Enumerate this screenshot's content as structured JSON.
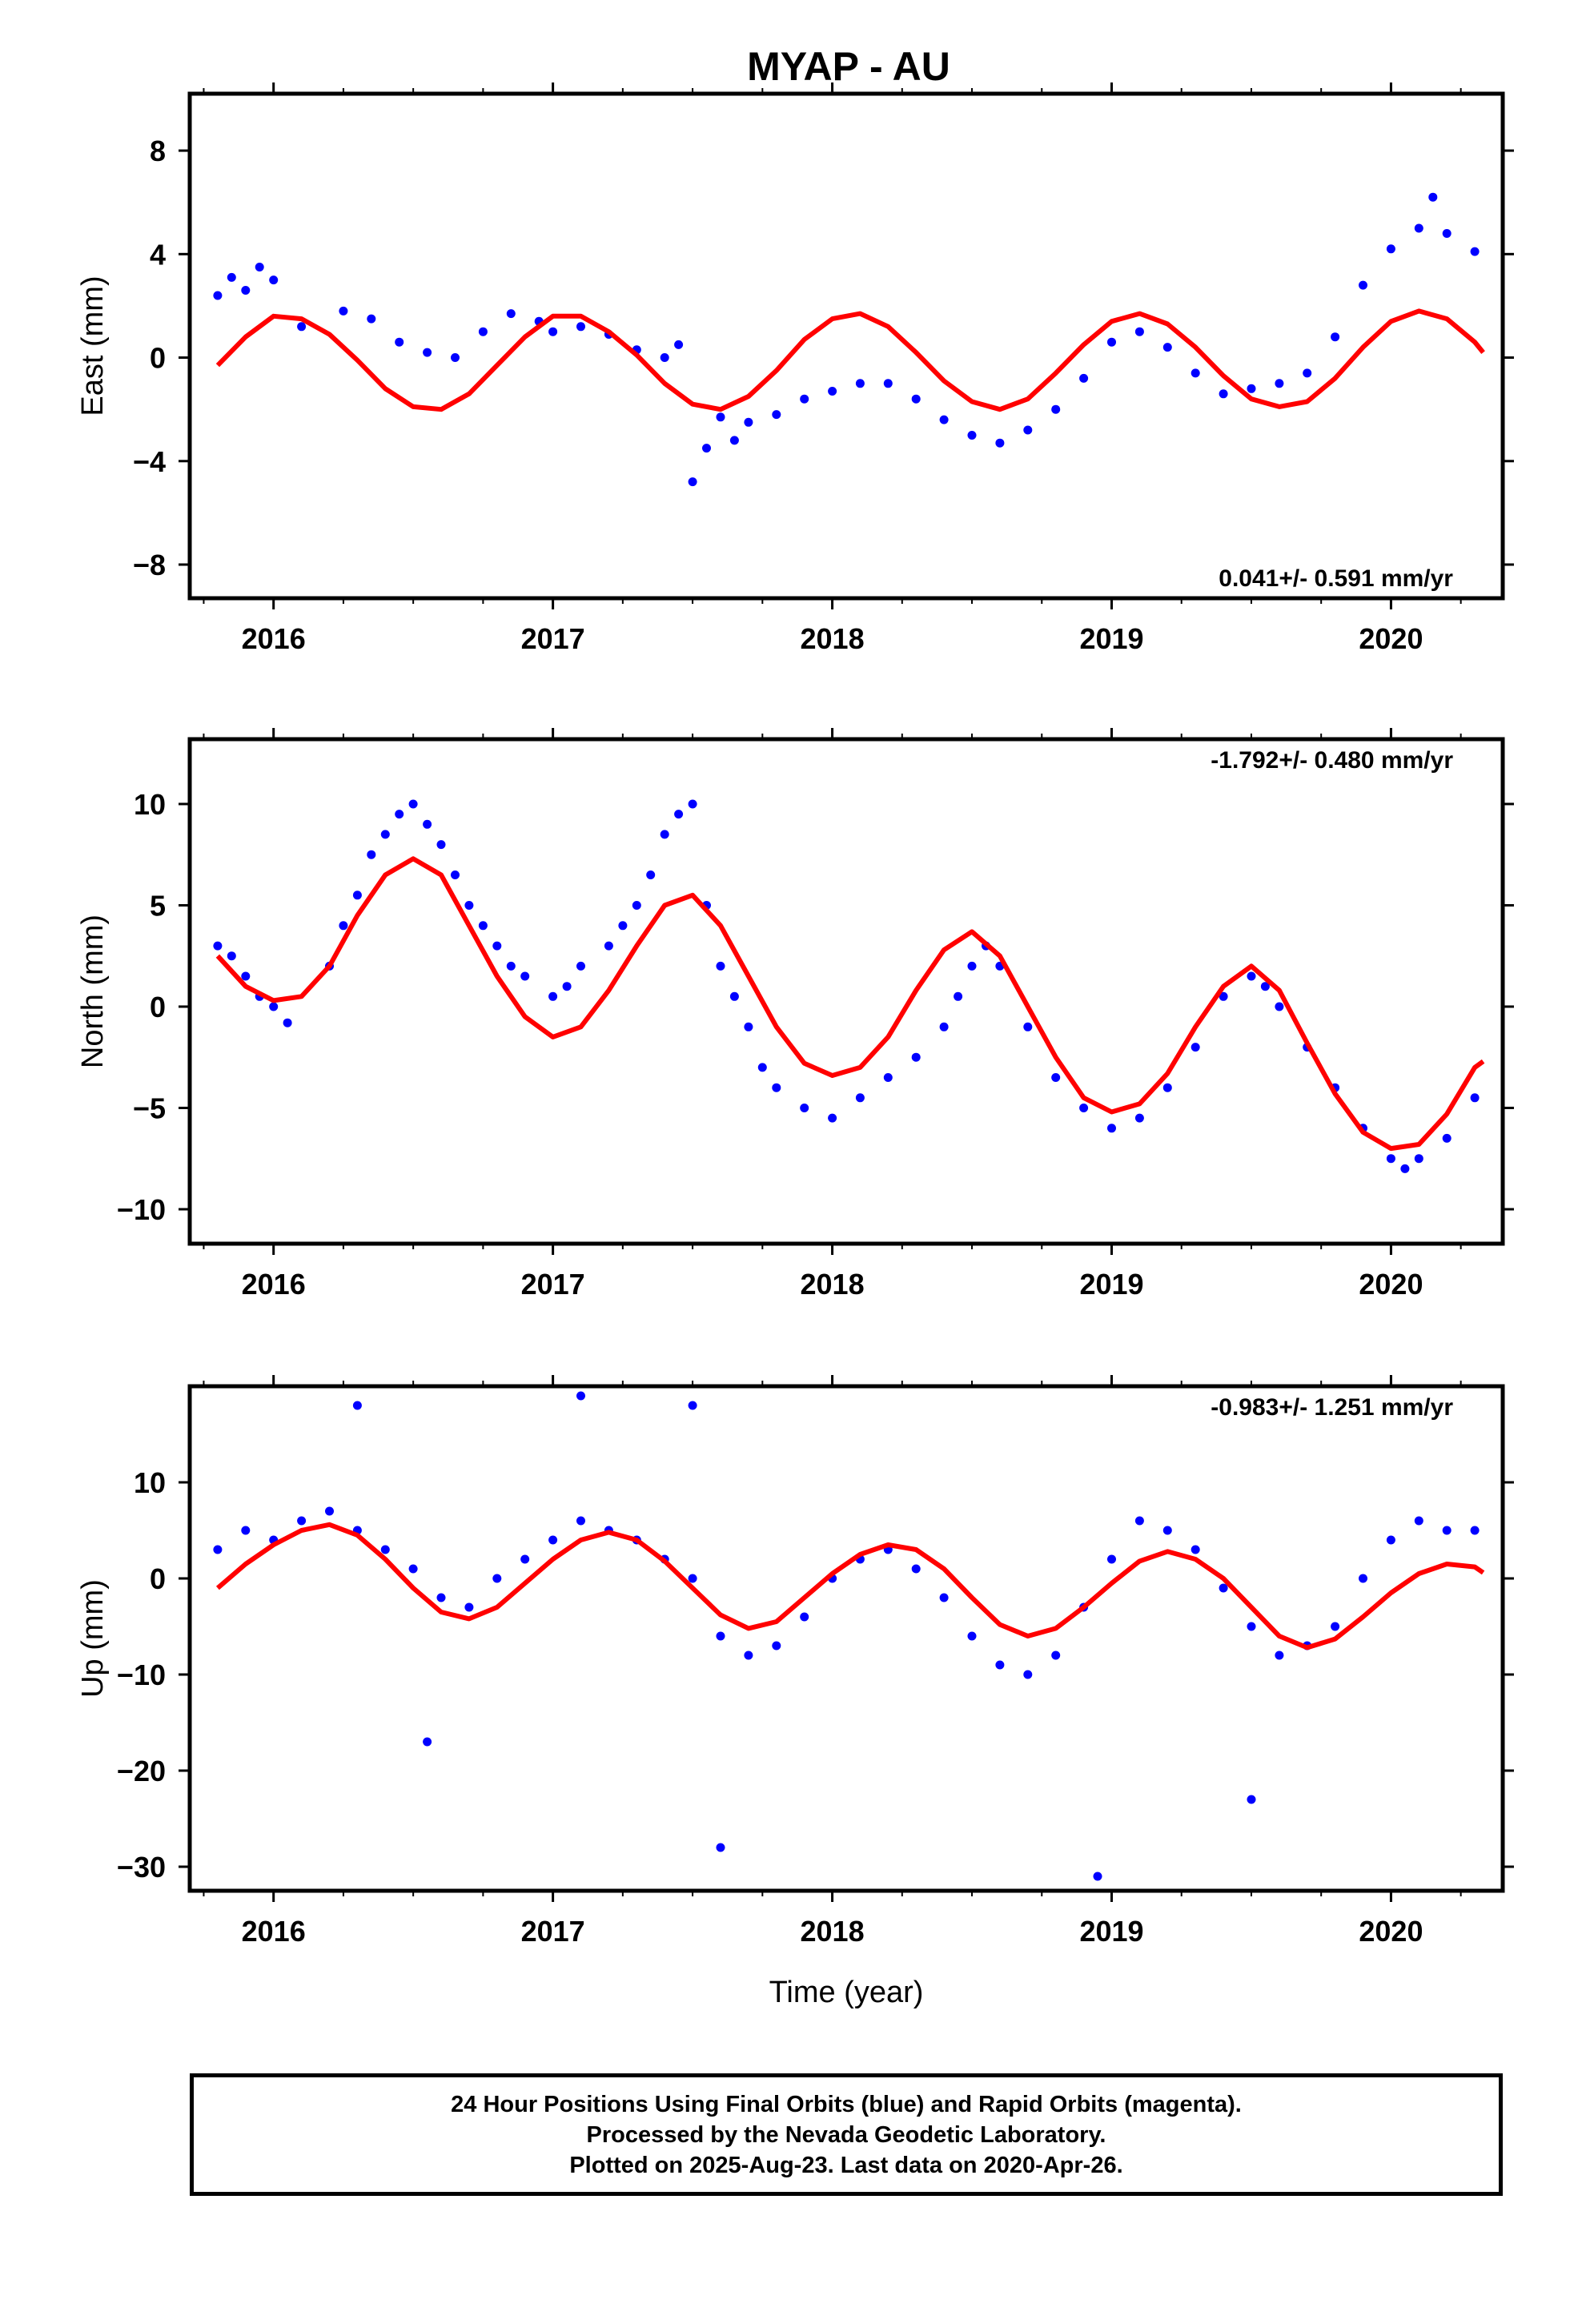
{
  "title": "MYAP - AU",
  "xlabel": "Time (year)",
  "colors": {
    "final_orbits": "#0000ff",
    "model_fit": "#ff0000",
    "frame": "#000000"
  },
  "caption": {
    "line1": "24 Hour Positions Using Final Orbits (blue) and Rapid Orbits (magenta).",
    "line2": "Processed by the Nevada Geodetic Laboratory.",
    "line3": "Plotted on 2025-Aug-23. Last data on 2020-Apr-26."
  },
  "chart_data": [
    {
      "type": "scatter",
      "ylabel": "East (mm)",
      "rate_label": "0.041+/- 0.591 mm/yr",
      "xlim": [
        2015.7,
        2020.4
      ],
      "ylim": [
        -9.3,
        10.2
      ],
      "xticks": [
        2016,
        2017,
        2018,
        2019,
        2020
      ],
      "yticks": [
        -8,
        -4,
        0,
        4,
        8
      ],
      "points": [
        [
          2015.8,
          2.4
        ],
        [
          2015.85,
          3.1
        ],
        [
          2015.9,
          2.6
        ],
        [
          2015.95,
          3.5
        ],
        [
          2016.0,
          3.0
        ],
        [
          2016.1,
          1.2
        ],
        [
          2016.25,
          1.8
        ],
        [
          2016.35,
          1.5
        ],
        [
          2016.45,
          0.6
        ],
        [
          2016.55,
          0.2
        ],
        [
          2016.65,
          0.0
        ],
        [
          2016.75,
          1.0
        ],
        [
          2016.85,
          1.7
        ],
        [
          2016.95,
          1.4
        ],
        [
          2017.0,
          1.0
        ],
        [
          2017.1,
          1.2
        ],
        [
          2017.2,
          0.9
        ],
        [
          2017.3,
          0.3
        ],
        [
          2017.4,
          0.0
        ],
        [
          2017.45,
          0.5
        ],
        [
          2017.5,
          -4.8
        ],
        [
          2017.55,
          -3.5
        ],
        [
          2017.6,
          -2.3
        ],
        [
          2017.65,
          -3.2
        ],
        [
          2017.7,
          -2.5
        ],
        [
          2017.8,
          -2.2
        ],
        [
          2017.9,
          -1.6
        ],
        [
          2018.0,
          -1.3
        ],
        [
          2018.1,
          -1.0
        ],
        [
          2018.2,
          -1.0
        ],
        [
          2018.3,
          -1.6
        ],
        [
          2018.4,
          -2.4
        ],
        [
          2018.5,
          -3.0
        ],
        [
          2018.6,
          -3.3
        ],
        [
          2018.7,
          -2.8
        ],
        [
          2018.8,
          -2.0
        ],
        [
          2018.9,
          -0.8
        ],
        [
          2019.0,
          0.6
        ],
        [
          2019.1,
          1.0
        ],
        [
          2019.2,
          0.4
        ],
        [
          2019.3,
          -0.6
        ],
        [
          2019.4,
          -1.4
        ],
        [
          2019.5,
          -1.2
        ],
        [
          2019.6,
          -1.0
        ],
        [
          2019.7,
          -0.6
        ],
        [
          2019.8,
          0.8
        ],
        [
          2019.9,
          2.8
        ],
        [
          2020.0,
          4.2
        ],
        [
          2020.1,
          5.0
        ],
        [
          2020.15,
          6.2
        ],
        [
          2020.2,
          4.8
        ],
        [
          2020.3,
          4.1
        ]
      ],
      "fit": [
        [
          2015.8,
          -0.3
        ],
        [
          2015.9,
          0.8
        ],
        [
          2016.0,
          1.6
        ],
        [
          2016.1,
          1.5
        ],
        [
          2016.2,
          0.9
        ],
        [
          2016.3,
          -0.1
        ],
        [
          2016.4,
          -1.2
        ],
        [
          2016.5,
          -1.9
        ],
        [
          2016.6,
          -2.0
        ],
        [
          2016.7,
          -1.4
        ],
        [
          2016.8,
          -0.3
        ],
        [
          2016.9,
          0.8
        ],
        [
          2017.0,
          1.6
        ],
        [
          2017.1,
          1.6
        ],
        [
          2017.2,
          1.0
        ],
        [
          2017.3,
          0.1
        ],
        [
          2017.4,
          -1.0
        ],
        [
          2017.5,
          -1.8
        ],
        [
          2017.6,
          -2.0
        ],
        [
          2017.7,
          -1.5
        ],
        [
          2017.8,
          -0.5
        ],
        [
          2017.9,
          0.7
        ],
        [
          2018.0,
          1.5
        ],
        [
          2018.1,
          1.7
        ],
        [
          2018.2,
          1.2
        ],
        [
          2018.3,
          0.2
        ],
        [
          2018.4,
          -0.9
        ],
        [
          2018.5,
          -1.7
        ],
        [
          2018.6,
          -2.0
        ],
        [
          2018.7,
          -1.6
        ],
        [
          2018.8,
          -0.6
        ],
        [
          2018.9,
          0.5
        ],
        [
          2019.0,
          1.4
        ],
        [
          2019.1,
          1.7
        ],
        [
          2019.2,
          1.3
        ],
        [
          2019.3,
          0.4
        ],
        [
          2019.4,
          -0.7
        ],
        [
          2019.5,
          -1.6
        ],
        [
          2019.6,
          -1.9
        ],
        [
          2019.7,
          -1.7
        ],
        [
          2019.8,
          -0.8
        ],
        [
          2019.9,
          0.4
        ],
        [
          2020.0,
          1.4
        ],
        [
          2020.1,
          1.8
        ],
        [
          2020.2,
          1.5
        ],
        [
          2020.3,
          0.6
        ],
        [
          2020.33,
          0.2
        ]
      ]
    },
    {
      "type": "scatter",
      "ylabel": "North (mm)",
      "rate_label": "-1.792+/- 0.480 mm/yr",
      "xlim": [
        2015.7,
        2020.4
      ],
      "ylim": [
        -11.7,
        13.2
      ],
      "xticks": [
        2016,
        2017,
        2018,
        2019,
        2020
      ],
      "yticks": [
        -10,
        -5,
        0,
        5,
        10
      ],
      "points": [
        [
          2015.8,
          3.0
        ],
        [
          2015.85,
          2.5
        ],
        [
          2015.9,
          1.5
        ],
        [
          2015.95,
          0.5
        ],
        [
          2016.0,
          0.0
        ],
        [
          2016.05,
          -0.8
        ],
        [
          2016.2,
          2.0
        ],
        [
          2016.25,
          4.0
        ],
        [
          2016.3,
          5.5
        ],
        [
          2016.35,
          7.5
        ],
        [
          2016.4,
          8.5
        ],
        [
          2016.45,
          9.5
        ],
        [
          2016.5,
          10.0
        ],
        [
          2016.55,
          9.0
        ],
        [
          2016.6,
          8.0
        ],
        [
          2016.65,
          6.5
        ],
        [
          2016.7,
          5.0
        ],
        [
          2016.75,
          4.0
        ],
        [
          2016.8,
          3.0
        ],
        [
          2016.85,
          2.0
        ],
        [
          2016.9,
          1.5
        ],
        [
          2017.0,
          0.5
        ],
        [
          2017.05,
          1.0
        ],
        [
          2017.1,
          2.0
        ],
        [
          2017.2,
          3.0
        ],
        [
          2017.25,
          4.0
        ],
        [
          2017.3,
          5.0
        ],
        [
          2017.35,
          6.5
        ],
        [
          2017.4,
          8.5
        ],
        [
          2017.45,
          9.5
        ],
        [
          2017.5,
          10.0
        ],
        [
          2017.55,
          5.0
        ],
        [
          2017.6,
          2.0
        ],
        [
          2017.65,
          0.5
        ],
        [
          2017.7,
          -1.0
        ],
        [
          2017.75,
          -3.0
        ],
        [
          2017.8,
          -4.0
        ],
        [
          2017.9,
          -5.0
        ],
        [
          2018.0,
          -5.5
        ],
        [
          2018.1,
          -4.5
        ],
        [
          2018.2,
          -3.5
        ],
        [
          2018.3,
          -2.5
        ],
        [
          2018.4,
          -1.0
        ],
        [
          2018.45,
          0.5
        ],
        [
          2018.5,
          2.0
        ],
        [
          2018.55,
          3.0
        ],
        [
          2018.6,
          2.0
        ],
        [
          2018.7,
          -1.0
        ],
        [
          2018.8,
          -3.5
        ],
        [
          2018.9,
          -5.0
        ],
        [
          2019.0,
          -6.0
        ],
        [
          2019.1,
          -5.5
        ],
        [
          2019.2,
          -4.0
        ],
        [
          2019.3,
          -2.0
        ],
        [
          2019.4,
          0.5
        ],
        [
          2019.5,
          1.5
        ],
        [
          2019.55,
          1.0
        ],
        [
          2019.6,
          0.0
        ],
        [
          2019.7,
          -2.0
        ],
        [
          2019.8,
          -4.0
        ],
        [
          2019.9,
          -6.0
        ],
        [
          2020.0,
          -7.5
        ],
        [
          2020.05,
          -8.0
        ],
        [
          2020.1,
          -7.5
        ],
        [
          2020.2,
          -6.5
        ],
        [
          2020.3,
          -4.5
        ]
      ],
      "fit": [
        [
          2015.8,
          2.5
        ],
        [
          2015.9,
          1.0
        ],
        [
          2016.0,
          0.3
        ],
        [
          2016.1,
          0.5
        ],
        [
          2016.2,
          2.0
        ],
        [
          2016.3,
          4.5
        ],
        [
          2016.4,
          6.5
        ],
        [
          2016.5,
          7.3
        ],
        [
          2016.6,
          6.5
        ],
        [
          2016.7,
          4.0
        ],
        [
          2016.8,
          1.5
        ],
        [
          2016.9,
          -0.5
        ],
        [
          2017.0,
          -1.5
        ],
        [
          2017.1,
          -1.0
        ],
        [
          2017.2,
          0.8
        ],
        [
          2017.3,
          3.0
        ],
        [
          2017.4,
          5.0
        ],
        [
          2017.5,
          5.5
        ],
        [
          2017.6,
          4.0
        ],
        [
          2017.7,
          1.5
        ],
        [
          2017.8,
          -1.0
        ],
        [
          2017.9,
          -2.8
        ],
        [
          2018.0,
          -3.4
        ],
        [
          2018.1,
          -3.0
        ],
        [
          2018.2,
          -1.5
        ],
        [
          2018.3,
          0.8
        ],
        [
          2018.4,
          2.8
        ],
        [
          2018.5,
          3.7
        ],
        [
          2018.6,
          2.5
        ],
        [
          2018.7,
          0.0
        ],
        [
          2018.8,
          -2.5
        ],
        [
          2018.9,
          -4.5
        ],
        [
          2019.0,
          -5.2
        ],
        [
          2019.1,
          -4.8
        ],
        [
          2019.2,
          -3.3
        ],
        [
          2019.3,
          -1.0
        ],
        [
          2019.4,
          1.0
        ],
        [
          2019.5,
          2.0
        ],
        [
          2019.6,
          0.8
        ],
        [
          2019.7,
          -1.8
        ],
        [
          2019.8,
          -4.3
        ],
        [
          2019.9,
          -6.2
        ],
        [
          2020.0,
          -7.0
        ],
        [
          2020.1,
          -6.8
        ],
        [
          2020.2,
          -5.3
        ],
        [
          2020.3,
          -3.0
        ],
        [
          2020.33,
          -2.7
        ]
      ]
    },
    {
      "type": "scatter",
      "ylabel": "Up (mm)",
      "rate_label": "-0.983+/- 1.251 mm/yr",
      "xlim": [
        2015.7,
        2020.4
      ],
      "ylim": [
        -32.5,
        20.0
      ],
      "xticks": [
        2016,
        2017,
        2018,
        2019,
        2020
      ],
      "yticks": [
        -30,
        -20,
        -10,
        0,
        10
      ],
      "points": [
        [
          2015.8,
          3.0
        ],
        [
          2015.9,
          5.0
        ],
        [
          2016.0,
          4.0
        ],
        [
          2016.1,
          6.0
        ],
        [
          2016.2,
          7.0
        ],
        [
          2016.3,
          5.0
        ],
        [
          2016.4,
          3.0
        ],
        [
          2016.5,
          1.0
        ],
        [
          2016.6,
          -2.0
        ],
        [
          2016.7,
          -3.0
        ],
        [
          2016.8,
          0.0
        ],
        [
          2016.9,
          2.0
        ],
        [
          2017.0,
          4.0
        ],
        [
          2017.1,
          6.0
        ],
        [
          2017.2,
          5.0
        ],
        [
          2017.3,
          4.0
        ],
        [
          2017.4,
          2.0
        ],
        [
          2017.5,
          0.0
        ],
        [
          2017.6,
          -6.0
        ],
        [
          2017.7,
          -8.0
        ],
        [
          2017.8,
          -7.0
        ],
        [
          2017.9,
          -4.0
        ],
        [
          2018.0,
          0.0
        ],
        [
          2018.1,
          2.0
        ],
        [
          2018.2,
          3.0
        ],
        [
          2018.3,
          1.0
        ],
        [
          2018.4,
          -2.0
        ],
        [
          2018.5,
          -6.0
        ],
        [
          2018.6,
          -9.0
        ],
        [
          2018.7,
          -10.0
        ],
        [
          2018.8,
          -8.0
        ],
        [
          2018.9,
          -3.0
        ],
        [
          2019.0,
          2.0
        ],
        [
          2019.1,
          6.0
        ],
        [
          2019.2,
          5.0
        ],
        [
          2019.3,
          3.0
        ],
        [
          2019.4,
          -1.0
        ],
        [
          2019.5,
          -5.0
        ],
        [
          2019.6,
          -8.0
        ],
        [
          2019.7,
          -7.0
        ],
        [
          2019.8,
          -5.0
        ],
        [
          2019.9,
          0.0
        ],
        [
          2020.0,
          4.0
        ],
        [
          2020.1,
          6.0
        ],
        [
          2020.2,
          5.0
        ],
        [
          2020.3,
          5.0
        ],
        [
          2017.5,
          18.0
        ],
        [
          2017.6,
          -28.0
        ],
        [
          2018.95,
          -31.0
        ],
        [
          2016.55,
          -17.0
        ],
        [
          2019.5,
          -23.0
        ],
        [
          2016.3,
          18.0
        ],
        [
          2017.1,
          19.0
        ]
      ],
      "fit": [
        [
          2015.8,
          -1.0
        ],
        [
          2015.9,
          1.5
        ],
        [
          2016.0,
          3.5
        ],
        [
          2016.1,
          5.0
        ],
        [
          2016.2,
          5.6
        ],
        [
          2016.3,
          4.5
        ],
        [
          2016.4,
          2.0
        ],
        [
          2016.5,
          -1.0
        ],
        [
          2016.6,
          -3.5
        ],
        [
          2016.7,
          -4.2
        ],
        [
          2016.8,
          -3.0
        ],
        [
          2016.9,
          -0.5
        ],
        [
          2017.0,
          2.0
        ],
        [
          2017.1,
          4.0
        ],
        [
          2017.2,
          4.8
        ],
        [
          2017.3,
          4.0
        ],
        [
          2017.4,
          1.8
        ],
        [
          2017.5,
          -1.0
        ],
        [
          2017.6,
          -3.8
        ],
        [
          2017.7,
          -5.2
        ],
        [
          2017.8,
          -4.5
        ],
        [
          2017.9,
          -2.0
        ],
        [
          2018.0,
          0.5
        ],
        [
          2018.1,
          2.5
        ],
        [
          2018.2,
          3.5
        ],
        [
          2018.3,
          3.0
        ],
        [
          2018.4,
          1.0
        ],
        [
          2018.5,
          -2.0
        ],
        [
          2018.6,
          -4.8
        ],
        [
          2018.7,
          -6.0
        ],
        [
          2018.8,
          -5.2
        ],
        [
          2018.9,
          -3.0
        ],
        [
          2019.0,
          -0.5
        ],
        [
          2019.1,
          1.8
        ],
        [
          2019.2,
          2.8
        ],
        [
          2019.3,
          2.0
        ],
        [
          2019.4,
          0.0
        ],
        [
          2019.5,
          -3.0
        ],
        [
          2019.6,
          -6.0
        ],
        [
          2019.7,
          -7.2
        ],
        [
          2019.8,
          -6.3
        ],
        [
          2019.9,
          -4.0
        ],
        [
          2020.0,
          -1.5
        ],
        [
          2020.1,
          0.5
        ],
        [
          2020.2,
          1.5
        ],
        [
          2020.3,
          1.2
        ],
        [
          2020.33,
          0.6
        ]
      ]
    }
  ]
}
